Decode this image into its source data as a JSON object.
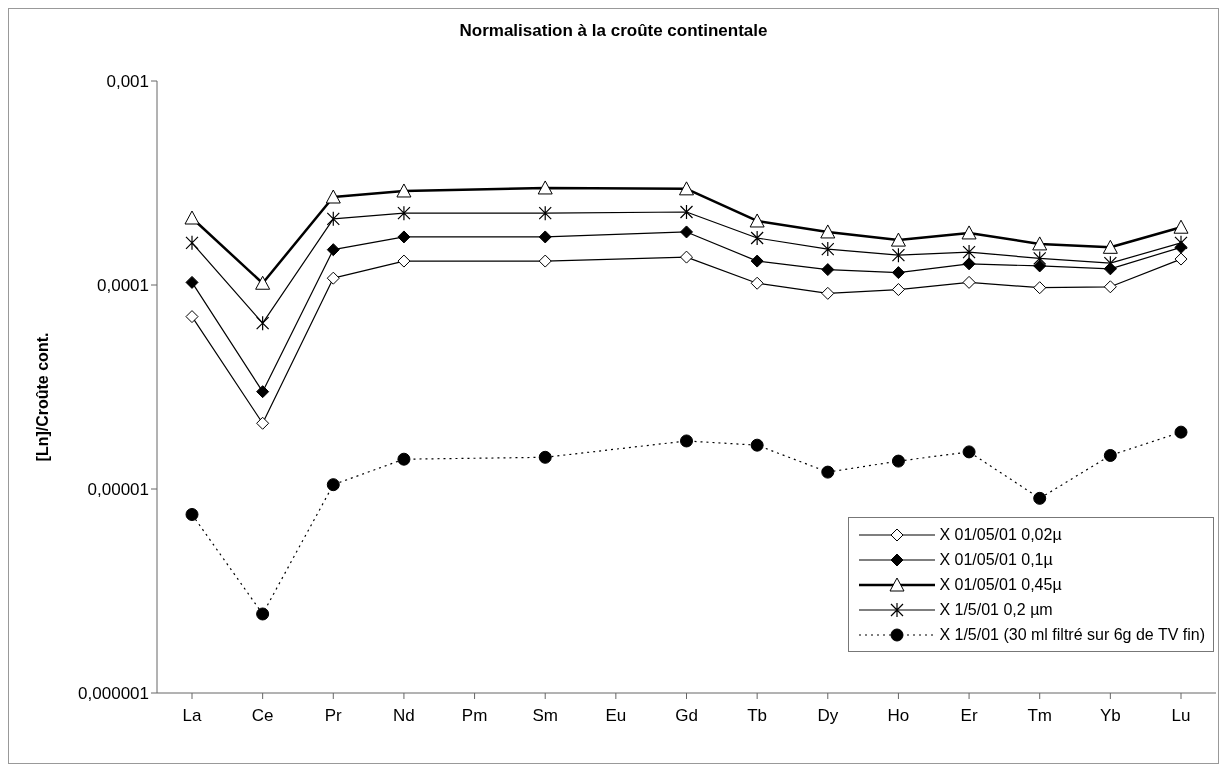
{
  "chart_data": {
    "type": "line",
    "title": "Normalisation à la croûte continentale",
    "ylabel": "[Ln]/Croûte cont.",
    "categories": [
      "La",
      "Ce",
      "Pr",
      "Nd",
      "Pm",
      "Sm",
      "Eu",
      "Gd",
      "Tb",
      "Dy",
      "Ho",
      "Er",
      "Tm",
      "Yb",
      "Lu"
    ],
    "series": [
      {
        "name": "X 01/05/01 0,02µ",
        "color": "#000000",
        "marker": "diamond",
        "line_style": "solid",
        "values": [
          7e-05,
          2.1e-05,
          0.000108,
          0.000131,
          null,
          0.000131,
          null,
          0.000137,
          0.000102,
          9.1e-05,
          9.5e-05,
          0.000103,
          9.7e-05,
          9.8e-05,
          0.000134
        ]
      },
      {
        "name": "X 01/05/01 0,1µ",
        "color": "#000000",
        "marker": "diamond",
        "line_style": "solid",
        "values": [
          0.000103,
          3e-05,
          0.000149,
          0.000172,
          null,
          0.000172,
          null,
          0.000182,
          0.000131,
          0.000119,
          0.000115,
          0.000127,
          0.000124,
          0.00012,
          0.000153
        ]
      },
      {
        "name": "X 01/05/01 0,45µ",
        "color": "#000000",
        "marker": "triangle",
        "line_style": "solid",
        "values": [
          0.000213,
          0.000102,
          0.00027,
          0.000289,
          null,
          0.000299,
          null,
          0.000296,
          0.000206,
          0.000182,
          0.000166,
          0.00018,
          0.000159,
          0.000153,
          0.000192
        ]
      },
      {
        "name": "X 1/5/01 0,2 µm",
        "color": "#000000",
        "marker": "cross",
        "line_style": "solid",
        "values": [
          0.000161,
          6.5e-05,
          0.000211,
          0.000225,
          null,
          0.000225,
          null,
          0.000228,
          0.00017,
          0.00015,
          0.00014,
          0.000145,
          0.000135,
          0.000128,
          0.000161
        ]
      },
      {
        "name": "X 1/5/01 (30 ml filtré sur 6g de TV fin)",
        "color": "#000000",
        "marker": "circle",
        "line_style": "dotted",
        "values": [
          7.5e-06,
          2.44e-06,
          1.05e-05,
          1.4e-05,
          null,
          1.43e-05,
          null,
          1.72e-05,
          1.64e-05,
          1.21e-05,
          1.37e-05,
          1.52e-05,
          9e-06,
          1.46e-05,
          1.9e-05
        ]
      }
    ],
    "log": "y",
    "ylim": [
      1e-06,
      0.001
    ],
    "yticks": [
      {
        "value": 1e-06,
        "label": "0,000001"
      },
      {
        "value": 1e-05,
        "label": "0,00001"
      },
      {
        "value": 0.0001,
        "label": "0,0001"
      },
      {
        "value": 0.001,
        "label": "0,001"
      }
    ],
    "grid": false,
    "legend": "bottom right"
  }
}
